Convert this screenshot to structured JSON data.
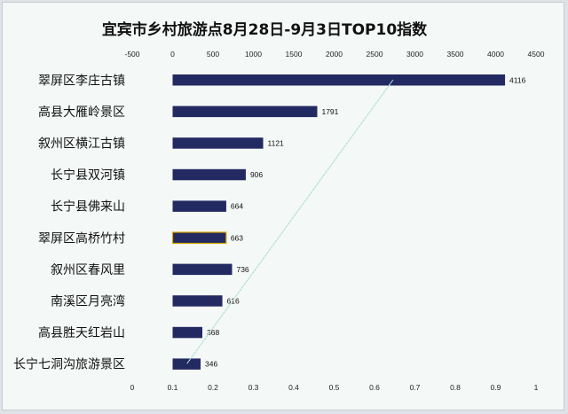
{
  "chart_data": {
    "type": "bar",
    "orientation": "horizontal",
    "title": "宜宾市乡村旅游点8月28日-9月3日TOP10指数",
    "categories": [
      "翠屏区李庄古镇",
      "高县大雁岭景区",
      "叙州区横江古镇",
      "长宁县双河镇",
      "长宁县佛来山",
      "翠屏区高桥竹村",
      "叙州区春风里",
      "南溪区月亮湾",
      "高县胜天红岩山",
      "长宁七洞沟旅游景区"
    ],
    "values": [
      4116,
      1791,
      1121,
      906,
      664,
      663,
      736,
      616,
      368,
      346
    ],
    "value_labels": [
      "4116",
      "1791",
      "1121",
      "906",
      "664",
      "663",
      "736",
      "616",
      "368",
      "346"
    ],
    "top_axis": {
      "min": -500,
      "max": 4500,
      "ticks": [
        -500,
        0,
        500,
        1000,
        1500,
        2000,
        2500,
        3000,
        3500,
        4000,
        4500
      ],
      "tick_labels": [
        "-500",
        "0",
        "500",
        "1000",
        "1500",
        "2000",
        "2500",
        "3000",
        "3500",
        "4000",
        "4500"
      ]
    },
    "bottom_axis": {
      "min": 0,
      "max": 1,
      "ticks": [
        0,
        0.1,
        0.2,
        0.3,
        0.4,
        0.5,
        0.6,
        0.7,
        0.8,
        0.9,
        1
      ],
      "tick_labels": [
        "0",
        "0.1",
        "0.2",
        "0.3",
        "0.4",
        "0.5",
        "0.6",
        "0.7",
        "0.8",
        "0.9",
        "1"
      ]
    },
    "secondary_line": {
      "x": [
        0.07,
        0.58
      ],
      "y": [
        0,
        1
      ]
    },
    "bar_color": "#232a62",
    "highlight_outline_color": "#d9a400",
    "highlight_index": 5,
    "line_color": "#a6dcd0",
    "grid": false,
    "legend": "none"
  }
}
